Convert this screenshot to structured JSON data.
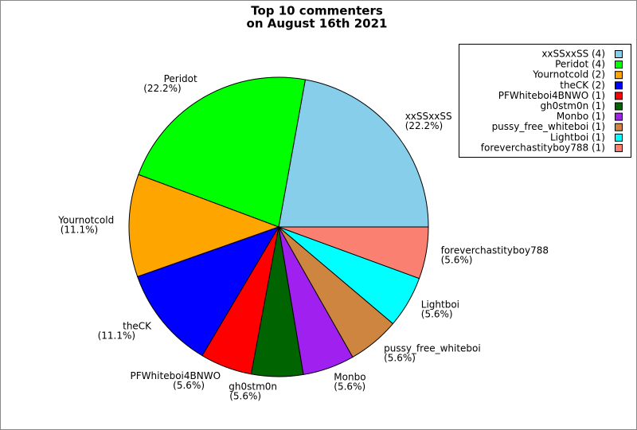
{
  "chart_data": {
    "type": "pie",
    "title": "Top 10 commenters",
    "subtitle": "on August 16th 2021",
    "categories": [
      "xxSSxxSS",
      "Peridot",
      "Yournotcold",
      "theCK",
      "PFWhiteboi4BNWO",
      "gh0stm0n",
      "Monbo",
      "pussy_free_whiteboi",
      "Lightboi",
      "foreverchastityboy788"
    ],
    "values": [
      22.2,
      22.2,
      11.1,
      11.1,
      5.6,
      5.6,
      5.6,
      5.6,
      5.6,
      5.6
    ],
    "value_labels": [
      "(22.2%)",
      "(22.2%)",
      "(11.1%)",
      "(11.1%)",
      "(5.6%)",
      "(5.6%)",
      "(5.6%)",
      "(5.6%)",
      "(5.6%)",
      "(5.6%)"
    ],
    "colors": [
      "#87ceeb",
      "#00ff00",
      "#ffa500",
      "#0000ff",
      "#ff0000",
      "#006400",
      "#a020f0",
      "#cd853f",
      "#00ffff",
      "#fa8072"
    ],
    "legend_labels": [
      "xxSSxxSS (4)",
      "Peridot (4)",
      "Yournotcold (2)",
      "theCK (2)",
      "PFWhiteboi4BNWO (1)",
      "gh0stm0n (1)",
      "Monbo (1)",
      "pussy_free_whiteboi (1)",
      "Lightboi (1)",
      "foreverchastityboy788 (1)"
    ],
    "legend": "upper right"
  }
}
